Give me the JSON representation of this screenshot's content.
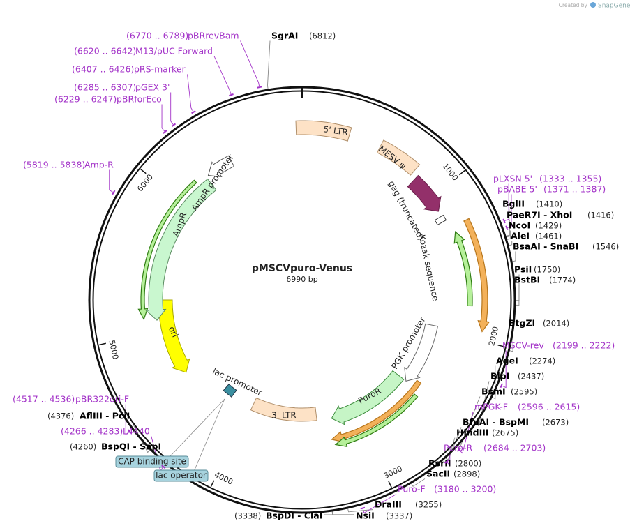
{
  "credit": {
    "prefix": "Created by",
    "brand": "SnapGene"
  },
  "plasmid": {
    "name": "pMSCVpuro-Venus",
    "size": "6990 bp"
  },
  "ticks": [
    "1000",
    "2000",
    "3000",
    "4000",
    "5000",
    "6000"
  ],
  "features": [
    {
      "label": "5' LTR"
    },
    {
      "label": "MESV ψ"
    },
    {
      "label": "gag (truncated)"
    },
    {
      "label": "Kozak sequence"
    },
    {
      "label": "PGK promoter"
    },
    {
      "label": "PuroR"
    },
    {
      "label": "3' LTR"
    },
    {
      "label": "lac promoter"
    },
    {
      "label": "ori"
    },
    {
      "label": "AmpR"
    },
    {
      "label": "AmpR promoter"
    }
  ],
  "regions": [
    "CAP binding site",
    "lac operator"
  ],
  "enzymes": [
    {
      "name": "SgrAI",
      "position": "(6812)"
    },
    {
      "name": "BglII",
      "position": "(1410)"
    },
    {
      "name": "PaeR7I  -  XhoI",
      "position": "(1416)"
    },
    {
      "name": "NcoI",
      "position": "(1429)"
    },
    {
      "name": "AleI",
      "position": "(1461)"
    },
    {
      "name": "BsaAI  -  SnaBI",
      "position": "(1546)"
    },
    {
      "name": "PsiI",
      "position": "(1750)"
    },
    {
      "name": "BstBI",
      "position": "(1774)"
    },
    {
      "name": "BtgZI",
      "position": "(2014)"
    },
    {
      "name": "AgeI",
      "position": "(2274)"
    },
    {
      "name": "BlpI",
      "position": "(2437)"
    },
    {
      "name": "BsmI",
      "position": "(2595)"
    },
    {
      "name": "BfuAI  -  BspMI",
      "position": "(2673)"
    },
    {
      "name": "HindIII",
      "position": "(2675)"
    },
    {
      "name": "RsrII",
      "position": "(2800)"
    },
    {
      "name": "SacII",
      "position": "(2898)"
    },
    {
      "name": "DraIII",
      "position": "(3255)"
    },
    {
      "name": "NsiI",
      "position": "(3337)"
    },
    {
      "name": "BspDI  -  ClaI",
      "position": "(3338)"
    },
    {
      "name": "AflIII  -  PciI",
      "position": "(4376)"
    },
    {
      "name": "BspQI  -  SapI",
      "position": "(4260)"
    }
  ],
  "primers": [
    {
      "name": "pBRrevBam",
      "range": "(6770 .. 6789)"
    },
    {
      "name": "M13/pUC Forward",
      "range": "(6620 .. 6642)"
    },
    {
      "name": "pRS-marker",
      "range": "(6407 .. 6426)"
    },
    {
      "name": "pGEX 3'",
      "range": "(6285 .. 6307)"
    },
    {
      "name": "pBRforEco",
      "range": "(6229 .. 6247)"
    },
    {
      "name": "Amp-R",
      "range": "(5819 .. 5838)"
    },
    {
      "name": "pLXSN 5'",
      "range": "(1333 .. 1355)"
    },
    {
      "name": "pBABE 5'",
      "range": "(1371 .. 1387)"
    },
    {
      "name": "MSCV-rev",
      "range": "(2199 .. 2222)"
    },
    {
      "name": "mPGK-F",
      "range": "(2596 .. 2615)"
    },
    {
      "name": "Puro-R",
      "range": "(2684 .. 2703)"
    },
    {
      "name": "Puro-F",
      "range": "(3180 .. 3200)"
    },
    {
      "name": "pBR322ori-F",
      "range": "(4517 .. 4536)"
    },
    {
      "name": "L4440",
      "range": "(4266 .. 4283)"
    }
  ]
}
